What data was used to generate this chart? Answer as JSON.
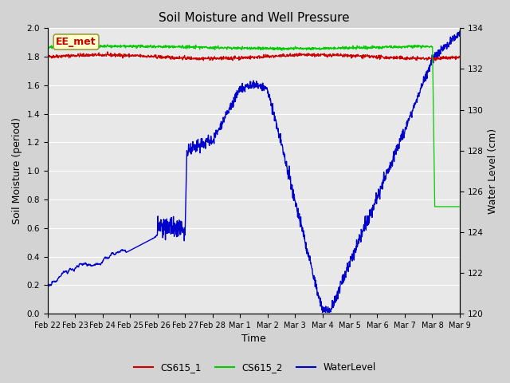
{
  "title": "Soil Moisture and Well Pressure",
  "ylabel_left": "Soil Moisture (period)",
  "ylabel_right": "Water Level (cm)",
  "xlabel": "Time",
  "ylim_left": [
    0.0,
    2.0
  ],
  "ylim_right": [
    120,
    134
  ],
  "annotation_text": "EE_met",
  "annotation_color": "#cc0000",
  "annotation_bg": "#ffffcc",
  "fig_bg": "#d3d3d3",
  "plot_bg": "#e8e8e8",
  "cs615_1_color": "#cc0000",
  "cs615_2_color": "#00cc00",
  "water_color": "#0000cc",
  "legend_labels": [
    "CS615_1",
    "CS615_2",
    "WaterLevel"
  ],
  "xtick_labels": [
    "Feb 22",
    "Feb 23",
    "Feb 24",
    "Feb 25",
    "Feb 26",
    "Feb 27",
    "Feb 28",
    "Mar 1",
    "Mar 2",
    "Mar 3",
    "Mar 4",
    "Mar 5",
    "Mar 6",
    "Mar 7",
    "Mar 8",
    "Mar 9"
  ],
  "ytick_left": [
    0.0,
    0.2,
    0.4,
    0.6,
    0.8,
    1.0,
    1.2,
    1.4,
    1.6,
    1.8,
    2.0
  ],
  "ytick_right": [
    120,
    122,
    124,
    126,
    128,
    130,
    132,
    134
  ]
}
